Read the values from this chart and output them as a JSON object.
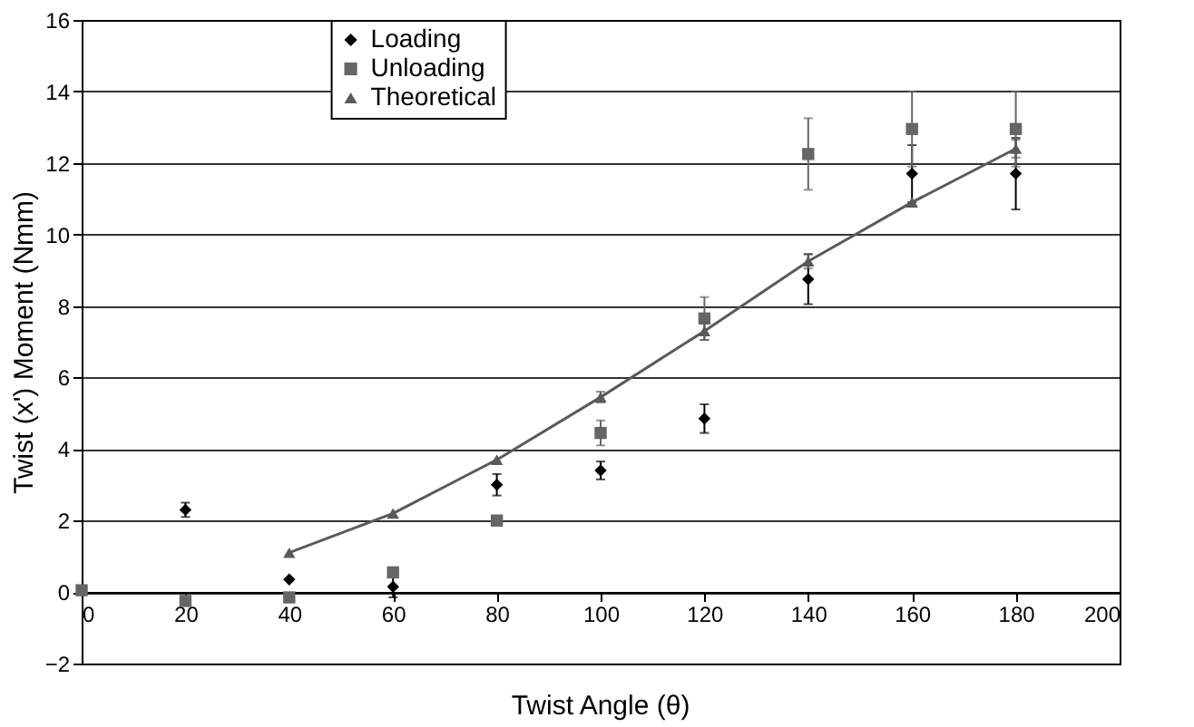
{
  "chart_data": {
    "type": "scatter",
    "xlabel": "Twist Angle (θ)",
    "ylabel": "Twist (x') Moment (Nmm)",
    "xlim": [
      0,
      200
    ],
    "xticks": [
      0,
      20,
      40,
      60,
      80,
      100,
      120,
      140,
      160,
      180,
      200
    ],
    "ylim": [
      -2,
      16
    ],
    "yticks": [
      -2,
      0,
      2,
      4,
      6,
      8,
      10,
      12,
      14,
      16
    ],
    "grid": "y",
    "legend": "top left",
    "series": [
      {
        "name": "Loading",
        "marker": "diamond",
        "color": "#000000",
        "x": [
          20,
          40,
          60,
          80,
          100,
          120,
          140,
          160,
          180
        ],
        "values": [
          2.3,
          0.35,
          0.15,
          3.0,
          3.4,
          4.85,
          8.75,
          11.7,
          11.7
        ],
        "errors": [
          0.2,
          null,
          0.3,
          0.3,
          0.25,
          0.4,
          0.7,
          0.8,
          1.0
        ]
      },
      {
        "name": "Unloading",
        "marker": "square",
        "color": "#666666",
        "x": [
          0,
          20,
          40,
          60,
          80,
          100,
          120,
          140,
          160,
          180
        ],
        "values": [
          0.05,
          -0.25,
          -0.15,
          0.55,
          2.0,
          4.45,
          7.65,
          12.25,
          12.95,
          12.95
        ],
        "errors": [
          null,
          null,
          null,
          null,
          null,
          0.35,
          0.6,
          1.0,
          1.05,
          1.05
        ]
      },
      {
        "name": "Theoretical",
        "type": "line",
        "marker": "triangle",
        "color": "#5a5a5a",
        "x": [
          40,
          60,
          80,
          100,
          120,
          140,
          160,
          180
        ],
        "values": [
          1.1,
          2.2,
          3.7,
          5.45,
          7.3,
          9.25,
          10.9,
          12.4
        ],
        "errors": [
          null,
          null,
          null,
          0.15,
          0.25,
          0.2,
          null,
          0.25
        ]
      }
    ]
  }
}
